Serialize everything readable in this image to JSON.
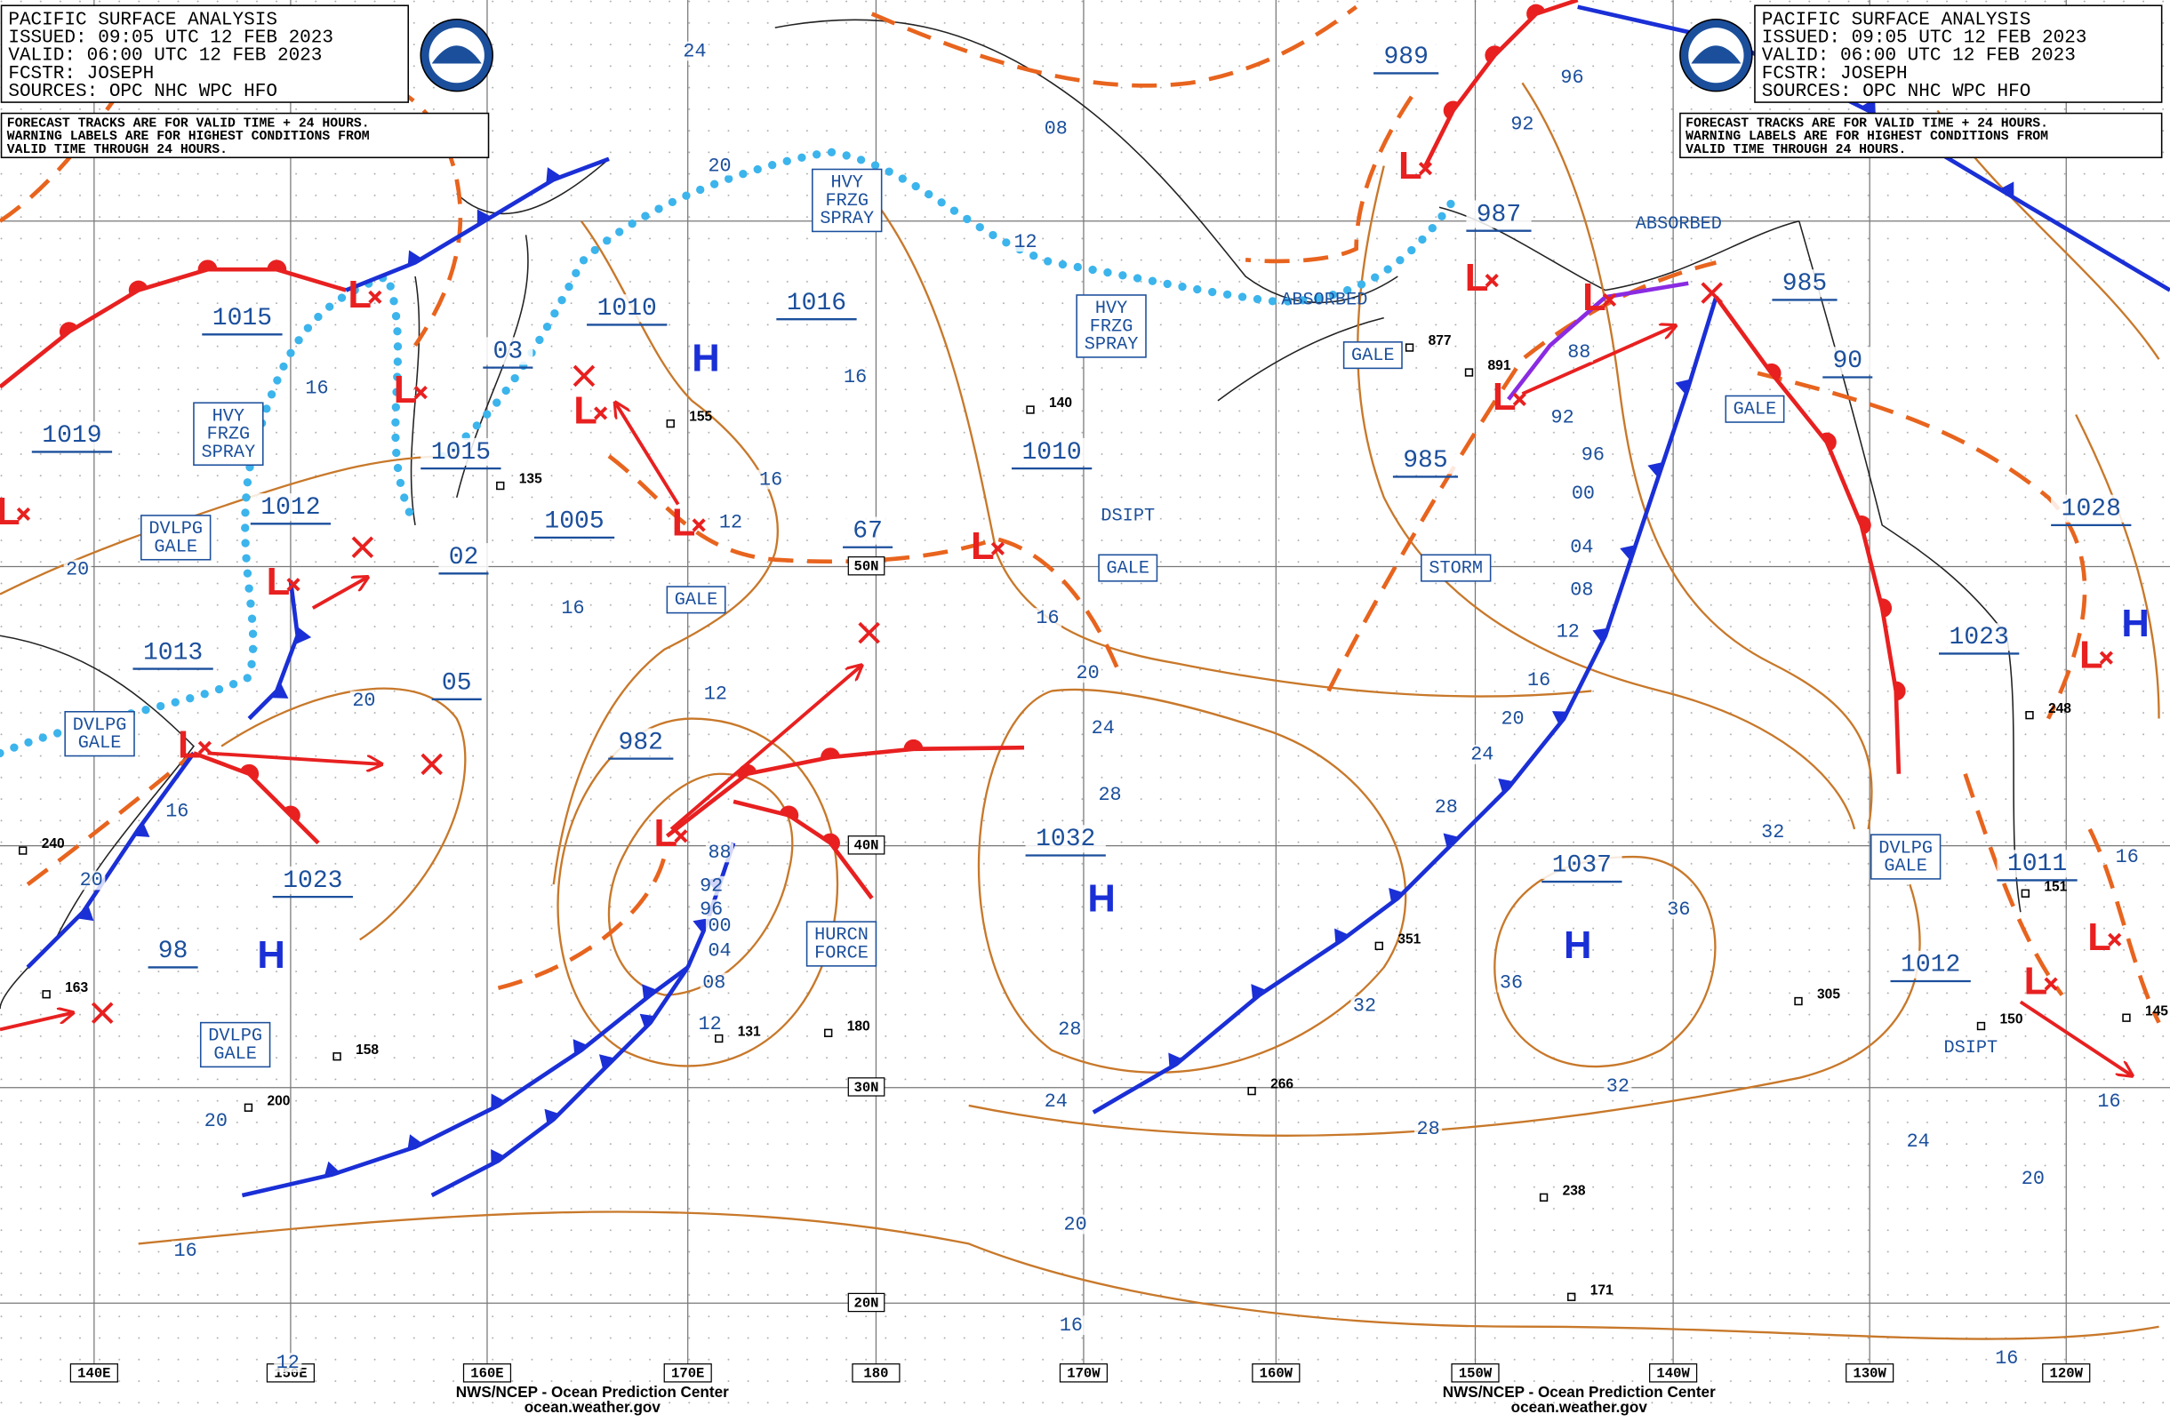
{
  "header_left": {
    "lines": [
      "PACIFIC SURFACE ANALYSIS",
      "ISSUED: 09:05 UTC 12 FEB 2023",
      "VALID: 06:00 UTC 12 FEB 2023",
      "FCSTR: JOSEPH",
      "SOURCES: OPC NHC WPC HFO"
    ],
    "note": [
      "FORECAST TRACKS ARE FOR VALID TIME + 24 HOURS.",
      "WARNING LABELS ARE FOR HIGHEST CONDITIONS FROM",
      "VALID TIME THROUGH 24 HOURS."
    ]
  },
  "header_right": {
    "lines": [
      "PACIFIC SURFACE ANALYSIS",
      "ISSUED: 09:05 UTC 12 FEB 2023",
      "VALID: 06:00 UTC 12 FEB 2023",
      "FCSTR: JOSEPH",
      "SOURCES: OPC NHC WPC HFO"
    ],
    "note": [
      "FORECAST TRACKS ARE FOR VALID TIME + 24 HOURS.",
      "WARNING LABELS ARE FOR HIGHEST CONDITIONS FROM",
      "VALID TIME THROUGH 24 HOURS."
    ]
  },
  "footer_left": [
    "NWS/NCEP - Ocean Prediction Center",
    "ocean.weather.gov"
  ],
  "footer_right": [
    "NWS/NCEP - Ocean Prediction Center",
    "ocean.weather.gov"
  ],
  "longitudes": [
    "140E",
    "150E",
    "160E",
    "170E",
    "180",
    "170W",
    "160W",
    "150W",
    "140W",
    "130W",
    "120W"
  ],
  "latitudes": [
    "50N",
    "40N",
    "30N",
    "20N"
  ],
  "center_pressures": [
    "1015",
    "1019",
    "1012",
    "1013",
    "1015",
    "1005",
    "03",
    "02",
    "05",
    "1010",
    "1016",
    "982",
    "1023",
    "98",
    "67",
    "1010",
    "1032",
    "1037",
    "989",
    "987",
    "985",
    "985",
    "90",
    "1028",
    "1023",
    "1011",
    "1012"
  ],
  "highs": [
    "H",
    "H",
    "H",
    "H",
    "H"
  ],
  "lows": [
    "L",
    "L",
    "L",
    "L",
    "L",
    "L",
    "L",
    "L",
    "L",
    "L",
    "L",
    "L",
    "L",
    "L",
    "L",
    "L"
  ],
  "warnings": [
    [
      "HVY",
      "FRZG",
      "SPRAY"
    ],
    [
      "HVY",
      "FRZG",
      "SPRAY"
    ],
    [
      "HVY",
      "FRZG",
      "SPRAY"
    ],
    [
      "DVLPG",
      "GALE"
    ],
    [
      "DVLPG",
      "GALE"
    ],
    [
      "DVLPG",
      "GALE"
    ],
    [
      "DVLPG",
      "GALE"
    ],
    [
      "GALE"
    ],
    [
      "GALE"
    ],
    [
      "GALE"
    ],
    [
      "GALE"
    ],
    [
      "STORM"
    ],
    [
      "HURCN",
      "FORCE"
    ]
  ],
  "other_labels": [
    "ABSORBED",
    "ABSORBED",
    "DSIPT",
    "DSIPT"
  ],
  "isobar_labels": [
    "24",
    "20",
    "08",
    "12",
    "16",
    "16",
    "12",
    "16",
    "16",
    "20",
    "20",
    "16",
    "20",
    "12",
    "16",
    "20",
    "24",
    "28",
    "88",
    "92",
    "96",
    "00",
    "04",
    "08",
    "12",
    "28",
    "24",
    "20",
    "16",
    "16",
    "12",
    "20",
    "96",
    "92",
    "88",
    "92",
    "96",
    "00",
    "04",
    "08",
    "12",
    "16",
    "20",
    "24",
    "28",
    "32",
    "36",
    "36",
    "32",
    "32",
    "28",
    "24",
    "20",
    "16",
    "16",
    "16"
  ],
  "station_reports": [
    "240",
    "135",
    "155",
    "140",
    "877",
    "891",
    "163",
    "158",
    "200",
    "131",
    "180",
    "266",
    "351",
    "305",
    "238",
    "171",
    "248",
    "151",
    "145",
    "150"
  ]
}
